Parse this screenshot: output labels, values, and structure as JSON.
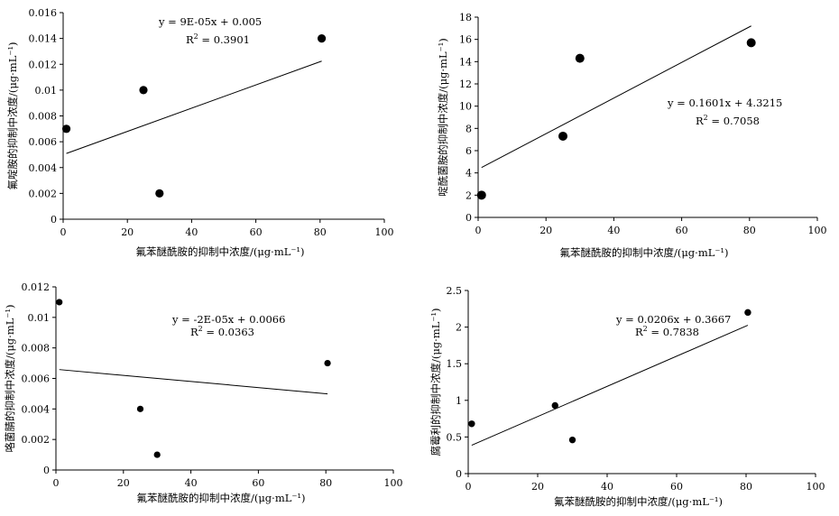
{
  "chart_data": [
    {
      "type": "scatter",
      "xlabel": "氟苯醚酰胺的抑制中浓度/(μg·mL⁻¹)",
      "ylabel": "氟啶胺的抑制中浓度/(μg·mL⁻¹)",
      "xlim": [
        0,
        100
      ],
      "ylim": [
        0,
        0.016
      ],
      "xticks": [
        "0",
        "20",
        "40",
        "60",
        "80",
        "100"
      ],
      "yticks": [
        "0",
        "0.002",
        "0.004",
        "0.006",
        "0.008",
        "0.01",
        "0.012",
        "0.014",
        "0.016"
      ],
      "points": [
        [
          1,
          0.007
        ],
        [
          25,
          0.01
        ],
        [
          30,
          0.002
        ],
        [
          80.5,
          0.014
        ]
      ],
      "trendline": {
        "slope": 9e-05,
        "intercept": 0.005,
        "x_range": [
          1,
          80.5
        ]
      },
      "equation": "y = 9E-05x + 0.005",
      "r2_label": "R",
      "r2_value": " = 0.3901",
      "grid": false
    },
    {
      "type": "scatter",
      "xlabel": "氟苯醚酰胺的抑制中浓度/(μg·mL⁻¹)",
      "ylabel": "啶酰菌胺的抑制中浓度/(μg·mL⁻¹)",
      "xlim": [
        0,
        100
      ],
      "ylim": [
        0,
        18
      ],
      "xticks": [
        "0",
        "20",
        "40",
        "60",
        "80",
        "100"
      ],
      "yticks": [
        "0",
        "2",
        "4",
        "6",
        "8",
        "10",
        "12",
        "14",
        "16",
        "18"
      ],
      "points": [
        [
          1,
          2
        ],
        [
          25,
          7.3
        ],
        [
          30,
          14.3
        ],
        [
          80.5,
          15.7
        ]
      ],
      "trendline": {
        "slope": 0.1601,
        "intercept": 4.3215,
        "x_range": [
          1,
          80.5
        ]
      },
      "equation": "y = 0.1601x + 4.3215",
      "r2_label": "R",
      "r2_value": " =  0.7058",
      "grid": false
    },
    {
      "type": "scatter",
      "xlabel": "氟苯醚酰胺的抑制中浓度/(μg·mL⁻¹)",
      "ylabel": "咯菌腈的抑制中浓度/(μg·mL⁻¹)",
      "xlim": [
        0,
        100
      ],
      "ylim": [
        0,
        0.012
      ],
      "xticks": [
        "0",
        "20",
        "40",
        "60",
        "80",
        "100"
      ],
      "yticks": [
        "0",
        "0.002",
        "0.004",
        "0.006",
        "0.008",
        "0.01",
        "0.012"
      ],
      "points": [
        [
          1,
          0.011
        ],
        [
          25,
          0.004
        ],
        [
          30,
          0.001
        ],
        [
          80.5,
          0.007
        ]
      ],
      "trendline": {
        "slope": -2e-05,
        "intercept": 0.0066,
        "x_range": [
          1,
          80.5
        ]
      },
      "equation": "y = -2E-05x + 0.0066",
      "r2_label": "R",
      "r2_value": " = 0.0363",
      "grid": false
    },
    {
      "type": "scatter",
      "xlabel": "氟苯醚酰胺的抑制中浓度/(μg·mL⁻¹)",
      "ylabel": "腐霉利的抑制中浓度/(μg·mL⁻¹)",
      "xlim": [
        0,
        100
      ],
      "ylim": [
        0,
        2.5
      ],
      "xticks": [
        "0",
        "20",
        "40",
        "60",
        "80",
        "100"
      ],
      "yticks": [
        "0",
        "0.5",
        "1",
        "1.5",
        "2",
        "2.5"
      ],
      "points": [
        [
          1,
          0.68
        ],
        [
          25,
          0.93
        ],
        [
          30,
          0.46
        ],
        [
          80.5,
          2.2
        ]
      ],
      "trendline": {
        "slope": 0.0206,
        "intercept": 0.3667,
        "x_range": [
          1,
          80.5
        ]
      },
      "equation": "y = 0.0206x + 0.3667",
      "r2_label": "R",
      "r2_value": " = 0.7838",
      "grid": false
    }
  ]
}
